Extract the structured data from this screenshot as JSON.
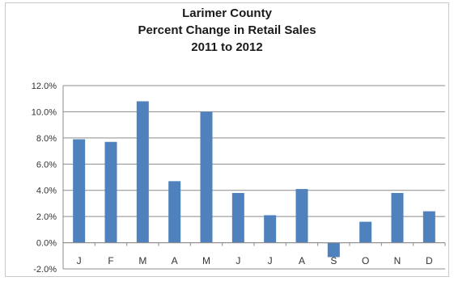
{
  "chart_data": {
    "type": "bar",
    "title": [
      "Larimer County",
      "Percent Change in Retail Sales",
      "2011 to 2012"
    ],
    "categories": [
      "J",
      "F",
      "M",
      "A",
      "M",
      "J",
      "J",
      "A",
      "S",
      "O",
      "N",
      "D"
    ],
    "values": [
      7.9,
      7.7,
      10.8,
      4.7,
      10.0,
      3.8,
      2.1,
      4.1,
      -1.1,
      1.6,
      3.8,
      2.4
    ],
    "ylim": [
      -2,
      12
    ],
    "yticks": [
      -2,
      0,
      2,
      4,
      6,
      8,
      10,
      12
    ],
    "ytick_labels": [
      "-2.0%",
      "0.0%",
      "2.0%",
      "4.0%",
      "6.0%",
      "8.0%",
      "10.0%",
      "12.0%"
    ],
    "grid": true,
    "legend": "none",
    "bar_color": "#4f81bd",
    "grid_color": "#8c8c8c"
  }
}
